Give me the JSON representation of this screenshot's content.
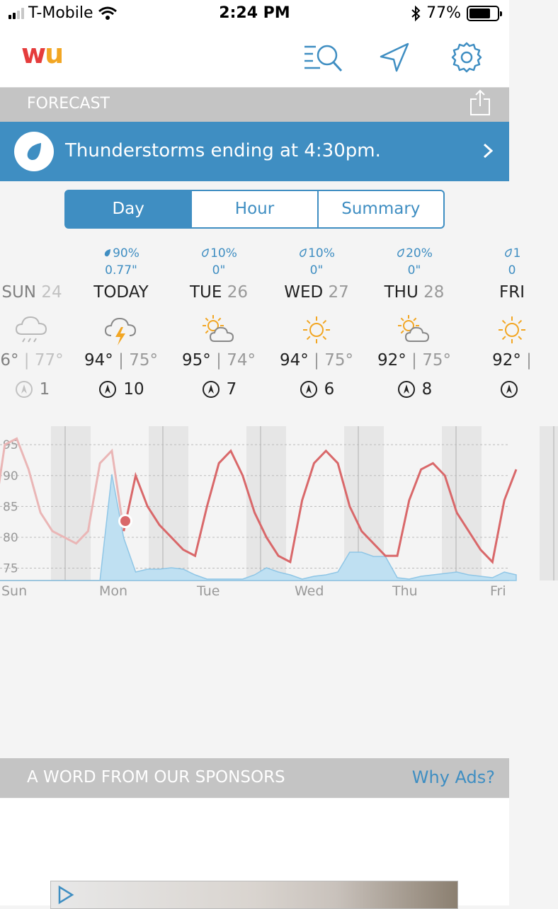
{
  "status_bar": {
    "carrier": "T-Mobile",
    "time": "2:24 PM",
    "battery": "77%",
    "battery_level": 0.77
  },
  "app": {
    "logo_text": "wu"
  },
  "forecast_bar": {
    "label": "FORECAST"
  },
  "alert": {
    "text": "Thunderstorms ending at 4:30pm."
  },
  "tabs": [
    {
      "label": "Day",
      "active": true
    },
    {
      "label": "Hour",
      "active": false
    },
    {
      "label": "Summary",
      "active": false
    }
  ],
  "days": [
    {
      "precip_pct": "",
      "precip_amt": "",
      "name": "SUN",
      "num": "24",
      "icon": "rain-cloud-icon",
      "hi": "6°",
      "lo": "77°",
      "wind": "1"
    },
    {
      "precip_pct": "90%",
      "precip_amt": "0.77\"",
      "name": "TODAY",
      "num": "",
      "icon": "thunderstorm-icon",
      "hi": "94°",
      "lo": "75°",
      "wind": "10"
    },
    {
      "precip_pct": "10%",
      "precip_amt": "0\"",
      "name": "TUE",
      "num": "26",
      "icon": "partly-cloudy-icon",
      "hi": "95°",
      "lo": "74°",
      "wind": "7"
    },
    {
      "precip_pct": "10%",
      "precip_amt": "0\"",
      "name": "WED",
      "num": "27",
      "icon": "sun-icon",
      "hi": "94°",
      "lo": "75°",
      "wind": "6"
    },
    {
      "precip_pct": "20%",
      "precip_amt": "0\"",
      "name": "THU",
      "num": "28",
      "icon": "partly-cloudy-icon",
      "hi": "92°",
      "lo": "75°",
      "wind": "8"
    },
    {
      "precip_pct": "1",
      "precip_amt": "0",
      "name": "FRI",
      "num": "",
      "icon": "sun-icon",
      "hi": "92°",
      "lo": "",
      "wind": ""
    }
  ],
  "chart_data": {
    "type": "line",
    "y_ticks": [
      "95",
      "90",
      "85",
      "80",
      "75"
    ],
    "x_labels": [
      "Sun",
      "Mon",
      "Tue",
      "Wed",
      "Thu",
      "Fri"
    ],
    "series": [
      {
        "name": "",
        "color": "#d9686a",
        "values": [
          82,
          95,
          96,
          91,
          84,
          81,
          80,
          79,
          81,
          92,
          94,
          81,
          90,
          85,
          82,
          80,
          78,
          77,
          85,
          92,
          94,
          90,
          84,
          80,
          77,
          76,
          86,
          92,
          94,
          92,
          85,
          81,
          79,
          77,
          77,
          86,
          91,
          92,
          90,
          84,
          81,
          78,
          76,
          86,
          91
        ]
      },
      {
        "name": "",
        "color": "#a8d4ec",
        "values": [
          0,
          0,
          0,
          0,
          0,
          0,
          0,
          0,
          0,
          0,
          75,
          30,
          6,
          8,
          8,
          9,
          8,
          4,
          1,
          1,
          1,
          1,
          4,
          9,
          6,
          4,
          1,
          3,
          4,
          6,
          20,
          20,
          17,
          17,
          2,
          1,
          3,
          4,
          5,
          6,
          4,
          3,
          2,
          6,
          4
        ]
      }
    ],
    "grid": true
  },
  "sponsor": {
    "label": "A WORD FROM OUR SPONSORS",
    "why": "Why Ads?"
  }
}
